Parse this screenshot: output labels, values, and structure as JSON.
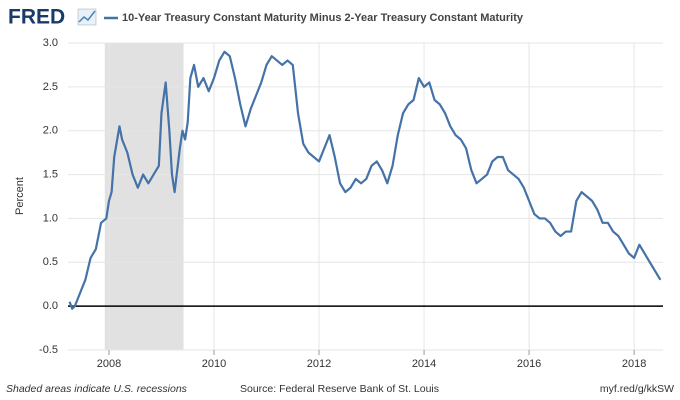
{
  "chart_data": {
    "type": "line",
    "logo": "FRED",
    "y_label": "Percent",
    "footer_left": "Shaded areas indicate U.S. recessions",
    "footer_center": "Source: Federal Reserve Bank of St. Louis",
    "footer_right": "myf.red/g/kkSW",
    "x": [
      2007.25,
      2007.3,
      2007.35,
      2007.45,
      2007.55,
      2007.65,
      2007.75,
      2007.85,
      2007.95,
      2008.0,
      2008.05,
      2008.1,
      2008.2,
      2008.25,
      2008.35,
      2008.45,
      2008.55,
      2008.65,
      2008.75,
      2008.85,
      2008.95,
      2009.0,
      2009.08,
      2009.15,
      2009.2,
      2009.25,
      2009.35,
      2009.4,
      2009.45,
      2009.5,
      2009.55,
      2009.62,
      2009.7,
      2009.8,
      2009.9,
      2010.0,
      2010.1,
      2010.2,
      2010.3,
      2010.4,
      2010.5,
      2010.6,
      2010.7,
      2010.8,
      2010.9,
      2011.0,
      2011.1,
      2011.2,
      2011.3,
      2011.4,
      2011.5,
      2011.6,
      2011.7,
      2011.8,
      2011.9,
      2012.0,
      2012.1,
      2012.2,
      2012.3,
      2012.4,
      2012.5,
      2012.6,
      2012.7,
      2012.8,
      2012.9,
      2013.0,
      2013.1,
      2013.2,
      2013.3,
      2013.4,
      2013.5,
      2013.6,
      2013.7,
      2013.8,
      2013.9,
      2014.0,
      2014.1,
      2014.2,
      2014.3,
      2014.4,
      2014.5,
      2014.6,
      2014.7,
      2014.8,
      2014.9,
      2015.0,
      2015.1,
      2015.2,
      2015.3,
      2015.4,
      2015.5,
      2015.6,
      2015.7,
      2015.8,
      2015.9,
      2016.0,
      2016.1,
      2016.2,
      2016.3,
      2016.4,
      2016.5,
      2016.6,
      2016.7,
      2016.8,
      2016.9,
      2017.0,
      2017.1,
      2017.2,
      2017.3,
      2017.4,
      2017.5,
      2017.6,
      2017.7,
      2017.8,
      2017.9,
      2018.0,
      2018.1,
      2018.2,
      2018.3,
      2018.4,
      2018.5
    ],
    "series": [
      {
        "name": "10-Year Treasury Constant Maturity Minus 2-Year Treasury Constant Maturity",
        "color": "#4572a7",
        "values": [
          0.05,
          -0.03,
          0.0,
          0.15,
          0.3,
          0.55,
          0.65,
          0.95,
          1.0,
          1.2,
          1.3,
          1.7,
          2.05,
          1.9,
          1.75,
          1.5,
          1.35,
          1.5,
          1.4,
          1.5,
          1.6,
          2.2,
          2.55,
          2.0,
          1.5,
          1.3,
          1.8,
          2.0,
          1.9,
          2.1,
          2.6,
          2.75,
          2.5,
          2.6,
          2.45,
          2.6,
          2.8,
          2.9,
          2.85,
          2.6,
          2.3,
          2.05,
          2.25,
          2.4,
          2.55,
          2.75,
          2.85,
          2.8,
          2.75,
          2.8,
          2.75,
          2.2,
          1.85,
          1.75,
          1.7,
          1.65,
          1.8,
          1.95,
          1.7,
          1.4,
          1.3,
          1.35,
          1.45,
          1.4,
          1.45,
          1.6,
          1.65,
          1.55,
          1.4,
          1.6,
          1.95,
          2.2,
          2.3,
          2.35,
          2.6,
          2.5,
          2.55,
          2.35,
          2.3,
          2.2,
          2.05,
          1.95,
          1.9,
          1.8,
          1.55,
          1.4,
          1.45,
          1.5,
          1.65,
          1.7,
          1.7,
          1.55,
          1.5,
          1.45,
          1.35,
          1.2,
          1.05,
          1.0,
          1.0,
          0.95,
          0.85,
          0.8,
          0.85,
          0.85,
          1.2,
          1.3,
          1.25,
          1.2,
          1.1,
          0.95,
          0.95,
          0.85,
          0.8,
          0.7,
          0.6,
          0.55,
          0.7,
          0.6,
          0.5,
          0.4,
          0.3
        ]
      }
    ],
    "xlim": [
      2007.22,
      2018.55
    ],
    "xticks": [
      2008,
      2010,
      2012,
      2014,
      2016,
      2018
    ],
    "ylim": [
      -0.5,
      3.0
    ],
    "yticks": [
      {
        "value": 3,
        "label": "3.0"
      },
      2.5,
      {
        "value": 2,
        "label": "2.0"
      },
      1.5,
      {
        "value": 1,
        "label": "1.0"
      },
      0.5,
      {
        "value": 0,
        "label": "0.0"
      },
      -0.5
    ],
    "recessions": [
      [
        2007.92,
        2009.42
      ]
    ],
    "recession_color": "#e1e1e1",
    "grid": true
  }
}
